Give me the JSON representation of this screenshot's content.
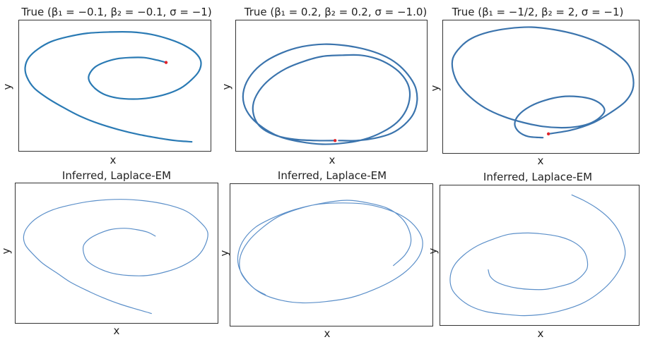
{
  "chart_data": [
    {
      "type": "line",
      "title": "True (β₁ = −0.1, β₂ = −0.1, σ = −1)",
      "xlabel": "x",
      "ylabel": "y",
      "grid": false,
      "colors": {
        "line": "#2a7ab4",
        "end_marker": "#e0242a"
      },
      "series": [
        {
          "x": [
            0.92,
            0.83,
            0.74,
            0.63,
            0.52,
            0.41,
            0.31,
            0.22,
            0.13,
            0.06,
            0.02,
            0.01,
            0.03,
            0.08,
            0.15,
            0.24,
            0.35,
            0.47,
            0.59,
            0.7,
            0.8,
            0.88,
            0.94,
            0.97,
            0.96,
            0.92,
            0.86,
            0.78,
            0.69,
            0.6,
            0.51,
            0.44,
            0.39,
            0.36,
            0.36,
            0.39,
            0.44,
            0.51,
            0.58,
            0.66,
            0.73,
            0.78
          ],
          "y": [
            0.04,
            0.05,
            0.07,
            0.1,
            0.14,
            0.19,
            0.25,
            0.32,
            0.4,
            0.48,
            0.57,
            0.65,
            0.73,
            0.8,
            0.86,
            0.9,
            0.93,
            0.94,
            0.94,
            0.92,
            0.88,
            0.83,
            0.77,
            0.7,
            0.62,
            0.55,
            0.48,
            0.43,
            0.4,
            0.39,
            0.4,
            0.43,
            0.48,
            0.54,
            0.59,
            0.65,
            0.69,
            0.72,
            0.73,
            0.73,
            0.71,
            0.69
          ]
        }
      ]
    },
    {
      "type": "line",
      "title": "True (β₁ = 0.2, β₂ = 0.2, σ = −1.0)",
      "xlabel": "x",
      "ylabel": "y",
      "grid": false,
      "colors": {
        "line": "#3b74ad",
        "end_marker": "#e0242a"
      },
      "series": [
        {
          "x": [
            0.54,
            0.64,
            0.74,
            0.83,
            0.9,
            0.95,
            0.97,
            0.96,
            0.92,
            0.86,
            0.78,
            0.68,
            0.57,
            0.46,
            0.34,
            0.23,
            0.13,
            0.06,
            0.02,
            0.02,
            0.06,
            0.13,
            0.22,
            0.33,
            0.45,
            0.57,
            0.68,
            0.78,
            0.86,
            0.91,
            0.93,
            0.92,
            0.88,
            0.82,
            0.75,
            0.66,
            0.56,
            0.45,
            0.35,
            0.25,
            0.16,
            0.1,
            0.07,
            0.08,
            0.12,
            0.2,
            0.3,
            0.42,
            0.52
          ],
          "y": [
            0.05,
            0.05,
            0.07,
            0.11,
            0.18,
            0.27,
            0.38,
            0.49,
            0.59,
            0.68,
            0.75,
            0.8,
            0.83,
            0.84,
            0.82,
            0.77,
            0.69,
            0.59,
            0.47,
            0.35,
            0.24,
            0.15,
            0.08,
            0.04,
            0.02,
            0.03,
            0.06,
            0.12,
            0.2,
            0.3,
            0.41,
            0.51,
            0.6,
            0.67,
            0.72,
            0.75,
            0.75,
            0.74,
            0.7,
            0.64,
            0.55,
            0.45,
            0.34,
            0.23,
            0.15,
            0.09,
            0.06,
            0.05,
            0.05
          ]
        }
      ]
    },
    {
      "type": "line",
      "title": "True (β₁ = −1/2, β₂ = 2, σ = −1)",
      "xlabel": "x",
      "ylabel": "y",
      "grid": false,
      "colors": {
        "line": "#3b74ad",
        "end_marker": "#e0242a"
      },
      "series": [
        {
          "x": [
            0.51,
            0.43,
            0.38,
            0.36,
            0.38,
            0.44,
            0.52,
            0.61,
            0.7,
            0.77,
            0.82,
            0.84,
            0.82,
            0.77,
            0.7,
            0.61,
            0.51,
            0.41,
            0.3,
            0.2,
            0.12,
            0.06,
            0.03,
            0.03,
            0.07,
            0.13,
            0.22,
            0.33,
            0.45,
            0.57,
            0.69,
            0.8,
            0.89,
            0.96,
            0.99,
            0.99,
            0.95,
            0.87,
            0.78,
            0.66,
            0.54
          ],
          "y": [
            0.09,
            0.1,
            0.14,
            0.2,
            0.27,
            0.34,
            0.39,
            0.42,
            0.42,
            0.4,
            0.36,
            0.31,
            0.26,
            0.21,
            0.18,
            0.17,
            0.18,
            0.21,
            0.26,
            0.33,
            0.42,
            0.52,
            0.63,
            0.73,
            0.82,
            0.89,
            0.94,
            0.97,
            0.98,
            0.96,
            0.92,
            0.86,
            0.78,
            0.69,
            0.59,
            0.48,
            0.38,
            0.29,
            0.21,
            0.15,
            0.12
          ]
        }
      ]
    },
    {
      "type": "line",
      "title": "Inferred, Laplace-EM",
      "xlabel": "x",
      "ylabel": "y",
      "grid": false,
      "colors": {
        "line": "#5b8fc9"
      },
      "series": [
        {
          "x": [
            0.68,
            0.61,
            0.52,
            0.43,
            0.34,
            0.26,
            0.19,
            0.12,
            0.07,
            0.03,
            0.02,
            0.04,
            0.09,
            0.17,
            0.27,
            0.39,
            0.52,
            0.64,
            0.76,
            0.86,
            0.93,
            0.97,
            0.96,
            0.92,
            0.85,
            0.76,
            0.66,
            0.56,
            0.47,
            0.4,
            0.35,
            0.33,
            0.33,
            0.36,
            0.41,
            0.47,
            0.54,
            0.6,
            0.66,
            0.7
          ],
          "y": [
            0.04,
            0.07,
            0.11,
            0.16,
            0.22,
            0.28,
            0.35,
            0.42,
            0.49,
            0.56,
            0.63,
            0.7,
            0.77,
            0.83,
            0.87,
            0.9,
            0.91,
            0.9,
            0.87,
            0.82,
            0.74,
            0.66,
            0.57,
            0.48,
            0.41,
            0.36,
            0.33,
            0.33,
            0.35,
            0.39,
            0.44,
            0.5,
            0.56,
            0.61,
            0.65,
            0.68,
            0.69,
            0.68,
            0.66,
            0.63
          ]
        }
      ]
    },
    {
      "type": "line",
      "title": "Inferred, Laplace-EM",
      "xlabel": "x",
      "ylabel": "y",
      "grid": false,
      "colors": {
        "line": "#5b8fc9"
      },
      "series": [
        {
          "x": [
            0.16,
            0.1,
            0.05,
            0.02,
            0.02,
            0.05,
            0.11,
            0.2,
            0.31,
            0.43,
            0.56,
            0.68,
            0.79,
            0.88,
            0.94,
            0.97,
            0.96,
            0.91,
            0.83,
            0.72,
            0.6,
            0.47,
            0.35,
            0.24,
            0.14,
            0.07,
            0.03,
            0.03,
            0.07,
            0.14,
            0.23,
            0.34,
            0.46,
            0.58,
            0.69,
            0.79,
            0.86,
            0.9,
            0.91,
            0.88,
            0.82
          ],
          "y": [
            0.2,
            0.25,
            0.33,
            0.42,
            0.52,
            0.62,
            0.71,
            0.78,
            0.84,
            0.88,
            0.89,
            0.88,
            0.84,
            0.78,
            0.7,
            0.61,
            0.51,
            0.41,
            0.32,
            0.24,
            0.18,
            0.15,
            0.14,
            0.16,
            0.21,
            0.29,
            0.38,
            0.49,
            0.6,
            0.7,
            0.79,
            0.85,
            0.89,
            0.91,
            0.89,
            0.85,
            0.78,
            0.69,
            0.59,
            0.5,
            0.42
          ]
        }
      ]
    },
    {
      "type": "line",
      "title": "Inferred, Laplace-EM",
      "xlabel": "x",
      "ylabel": "y",
      "grid": false,
      "colors": {
        "line": "#5b8fc9"
      },
      "series": [
        {
          "x": [
            0.23,
            0.24,
            0.27,
            0.32,
            0.38,
            0.45,
            0.53,
            0.6,
            0.67,
            0.72,
            0.75,
            0.75,
            0.73,
            0.68,
            0.61,
            0.53,
            0.44,
            0.34,
            0.25,
            0.17,
            0.1,
            0.05,
            0.03,
            0.04,
            0.08,
            0.14,
            0.22,
            0.32,
            0.42,
            0.52,
            0.62,
            0.72,
            0.8,
            0.87,
            0.92,
            0.95,
            0.94,
            0.91,
            0.86,
            0.8,
            0.73,
            0.67
          ],
          "y": [
            0.39,
            0.34,
            0.3,
            0.27,
            0.25,
            0.24,
            0.24,
            0.26,
            0.29,
            0.34,
            0.4,
            0.47,
            0.54,
            0.6,
            0.64,
            0.66,
            0.67,
            0.66,
            0.62,
            0.57,
            0.5,
            0.42,
            0.33,
            0.24,
            0.17,
            0.11,
            0.07,
            0.05,
            0.04,
            0.05,
            0.08,
            0.13,
            0.2,
            0.29,
            0.39,
            0.5,
            0.6,
            0.7,
            0.79,
            0.86,
            0.92,
            0.96
          ]
        }
      ]
    }
  ]
}
